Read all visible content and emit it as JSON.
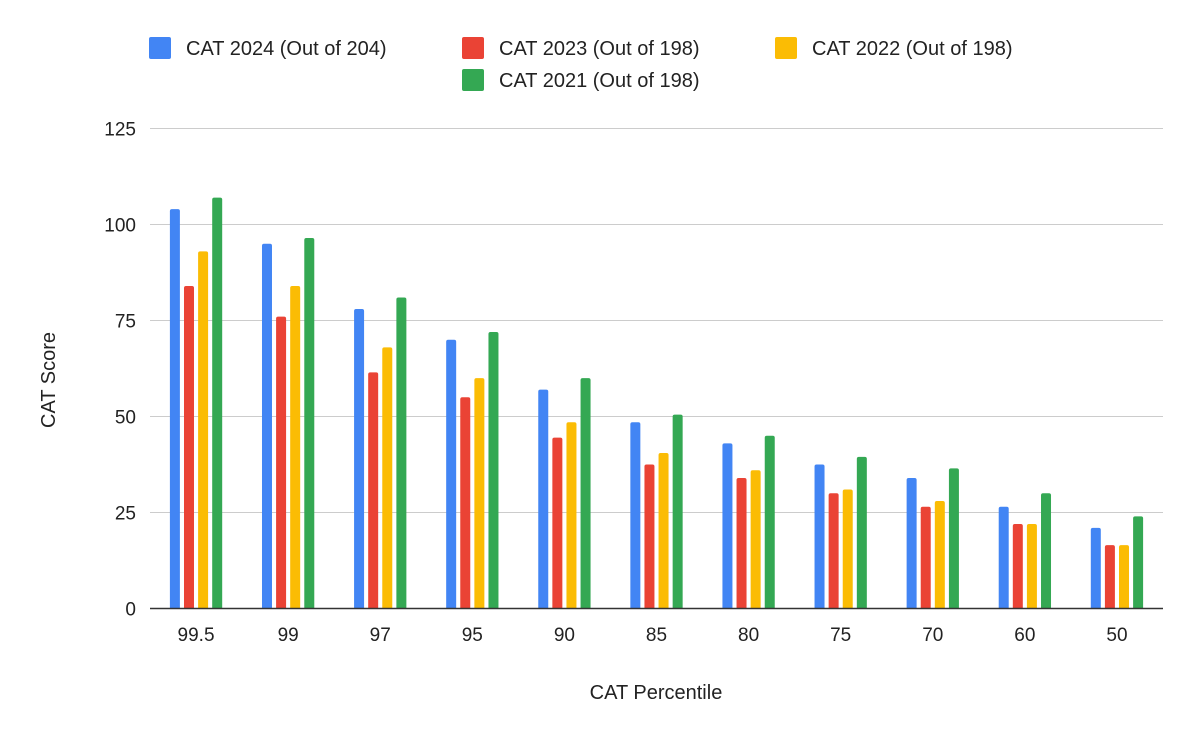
{
  "chart_data": {
    "type": "bar",
    "title": "",
    "xlabel": "CAT Percentile",
    "ylabel": "CAT Score",
    "ylim": [
      0,
      125
    ],
    "yticks": [
      0,
      25,
      50,
      75,
      100,
      125
    ],
    "grid": true,
    "legend_position": "top",
    "categories": [
      "99.5",
      "99",
      "97",
      "95",
      "90",
      "85",
      "80",
      "75",
      "70",
      "60",
      "50"
    ],
    "series": [
      {
        "name": "CAT 2024 (Out of 204)",
        "color": "#4285F4",
        "values": [
          104,
          95,
          78,
          70,
          57,
          48.5,
          43,
          37.5,
          34,
          26.5,
          21
        ]
      },
      {
        "name": "CAT 2023 (Out of 198)",
        "color": "#EA4335",
        "values": [
          84,
          76,
          61.5,
          55,
          44.5,
          37.5,
          34,
          30,
          26.5,
          22,
          16.5
        ]
      },
      {
        "name": "CAT 2022 (Out of 198)",
        "color": "#FBBC04",
        "values": [
          93,
          84,
          68,
          60,
          48.5,
          40.5,
          36,
          31,
          28,
          22,
          16.5
        ]
      },
      {
        "name": "CAT 2021 (Out of 198)",
        "color": "#34A853",
        "values": [
          107,
          96.5,
          81,
          72,
          60,
          50.5,
          45,
          39.5,
          36.5,
          30,
          24
        ]
      }
    ]
  }
}
